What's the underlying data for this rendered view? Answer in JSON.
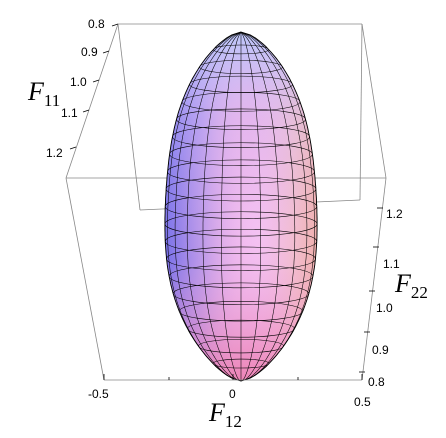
{
  "chart_data": {
    "type": "surface3d",
    "title": "",
    "axes": {
      "F11": {
        "label_main": "F",
        "label_sub": "11",
        "ticks": [
          "0.8",
          "0.9",
          "1.0",
          "1.1",
          "1.2"
        ],
        "tick_values": [
          0.8,
          0.9,
          1.0,
          1.1,
          1.2
        ]
      },
      "F22": {
        "label_main": "F",
        "label_sub": "22",
        "ticks": [
          "1.2",
          "1.1",
          "1.0",
          "0.9",
          "0.8"
        ],
        "tick_values": [
          1.2,
          1.1,
          1.0,
          0.9,
          0.8
        ]
      },
      "F12": {
        "label_main": "F",
        "label_sub": "12",
        "ticks": [
          "-0.5",
          "0",
          "0.5"
        ],
        "tick_values": [
          -0.5,
          0,
          0.5
        ]
      }
    },
    "surface": {
      "shape": "elongated closed ellipsoid-like surface with mesh",
      "F12_range": [
        -0.22,
        0.22
      ],
      "meridian_count": 24,
      "latitude_count": 20
    },
    "colors": {
      "left": "#6a6ef0",
      "top": "#bcd4ff",
      "center": "#f0b8f4",
      "bottom": "#f08fb6",
      "right": "#f4c0a6",
      "box": "#888888",
      "mesh": "#000000"
    }
  }
}
